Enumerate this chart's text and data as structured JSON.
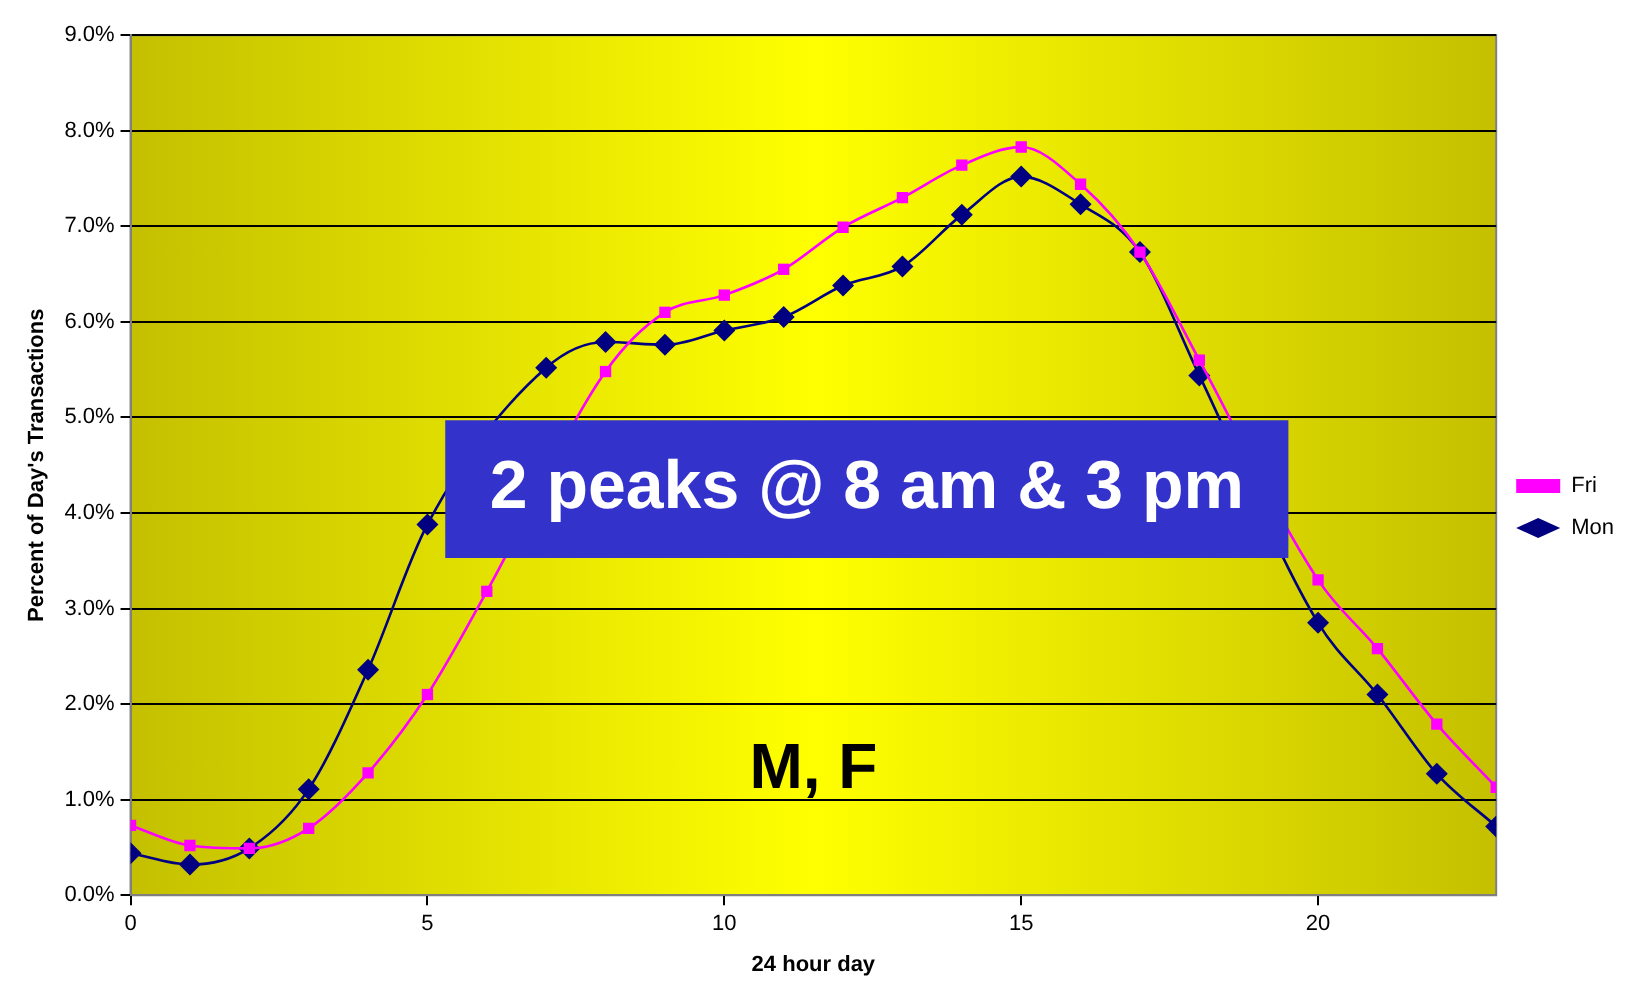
{
  "chart_data": {
    "type": "line",
    "xlabel": "24 hour day",
    "ylabel": "Percent of Day's Transactions",
    "x": [
      0,
      1,
      2,
      3,
      4,
      5,
      6,
      7,
      8,
      9,
      10,
      11,
      12,
      13,
      14,
      15,
      16,
      17,
      18,
      19,
      20,
      21,
      22,
      23
    ],
    "series": [
      {
        "name": "Mon",
        "color": "#000080",
        "marker": "diamond",
        "values": [
          0.44,
          0.32,
          0.49,
          1.11,
          2.36,
          3.88,
          null,
          5.52,
          5.79,
          5.76,
          5.91,
          6.05,
          6.38,
          6.58,
          7.12,
          7.52,
          7.23,
          6.73,
          5.44,
          null,
          2.85,
          2.1,
          1.27,
          0.72
        ]
      },
      {
        "name": "Fri",
        "color": "#ff00ff",
        "marker": "square",
        "values": [
          0.73,
          0.52,
          0.49,
          0.7,
          1.28,
          2.1,
          3.18,
          null,
          5.48,
          6.1,
          6.28,
          6.55,
          6.99,
          7.3,
          7.64,
          7.83,
          7.44,
          6.73,
          5.6,
          null,
          3.3,
          2.58,
          1.79,
          1.13
        ]
      }
    ],
    "xlim": [
      0,
      23
    ],
    "xticks": [
      0,
      5,
      10,
      15,
      20
    ],
    "ylim": [
      0,
      9
    ],
    "yticks": [
      {
        "value": 0,
        "label": "0.0%"
      },
      {
        "value": 1,
        "label": "1.0%"
      },
      {
        "value": 2,
        "label": "2.0%"
      },
      {
        "value": 3,
        "label": "3.0%"
      },
      {
        "value": 4,
        "label": "4.0%"
      },
      {
        "value": 5,
        "label": "5.0%"
      },
      {
        "value": 6,
        "label": "6.0%"
      },
      {
        "value": 7,
        "label": "7.0%"
      },
      {
        "value": 8,
        "label": "8.0%"
      },
      {
        "value": 9,
        "label": "9.0%"
      }
    ],
    "grid": "y",
    "legend": "right",
    "line_style": "solid",
    "annotations": [
      "2 peaks @ 8 am & 3 pm",
      "M, F"
    ]
  }
}
